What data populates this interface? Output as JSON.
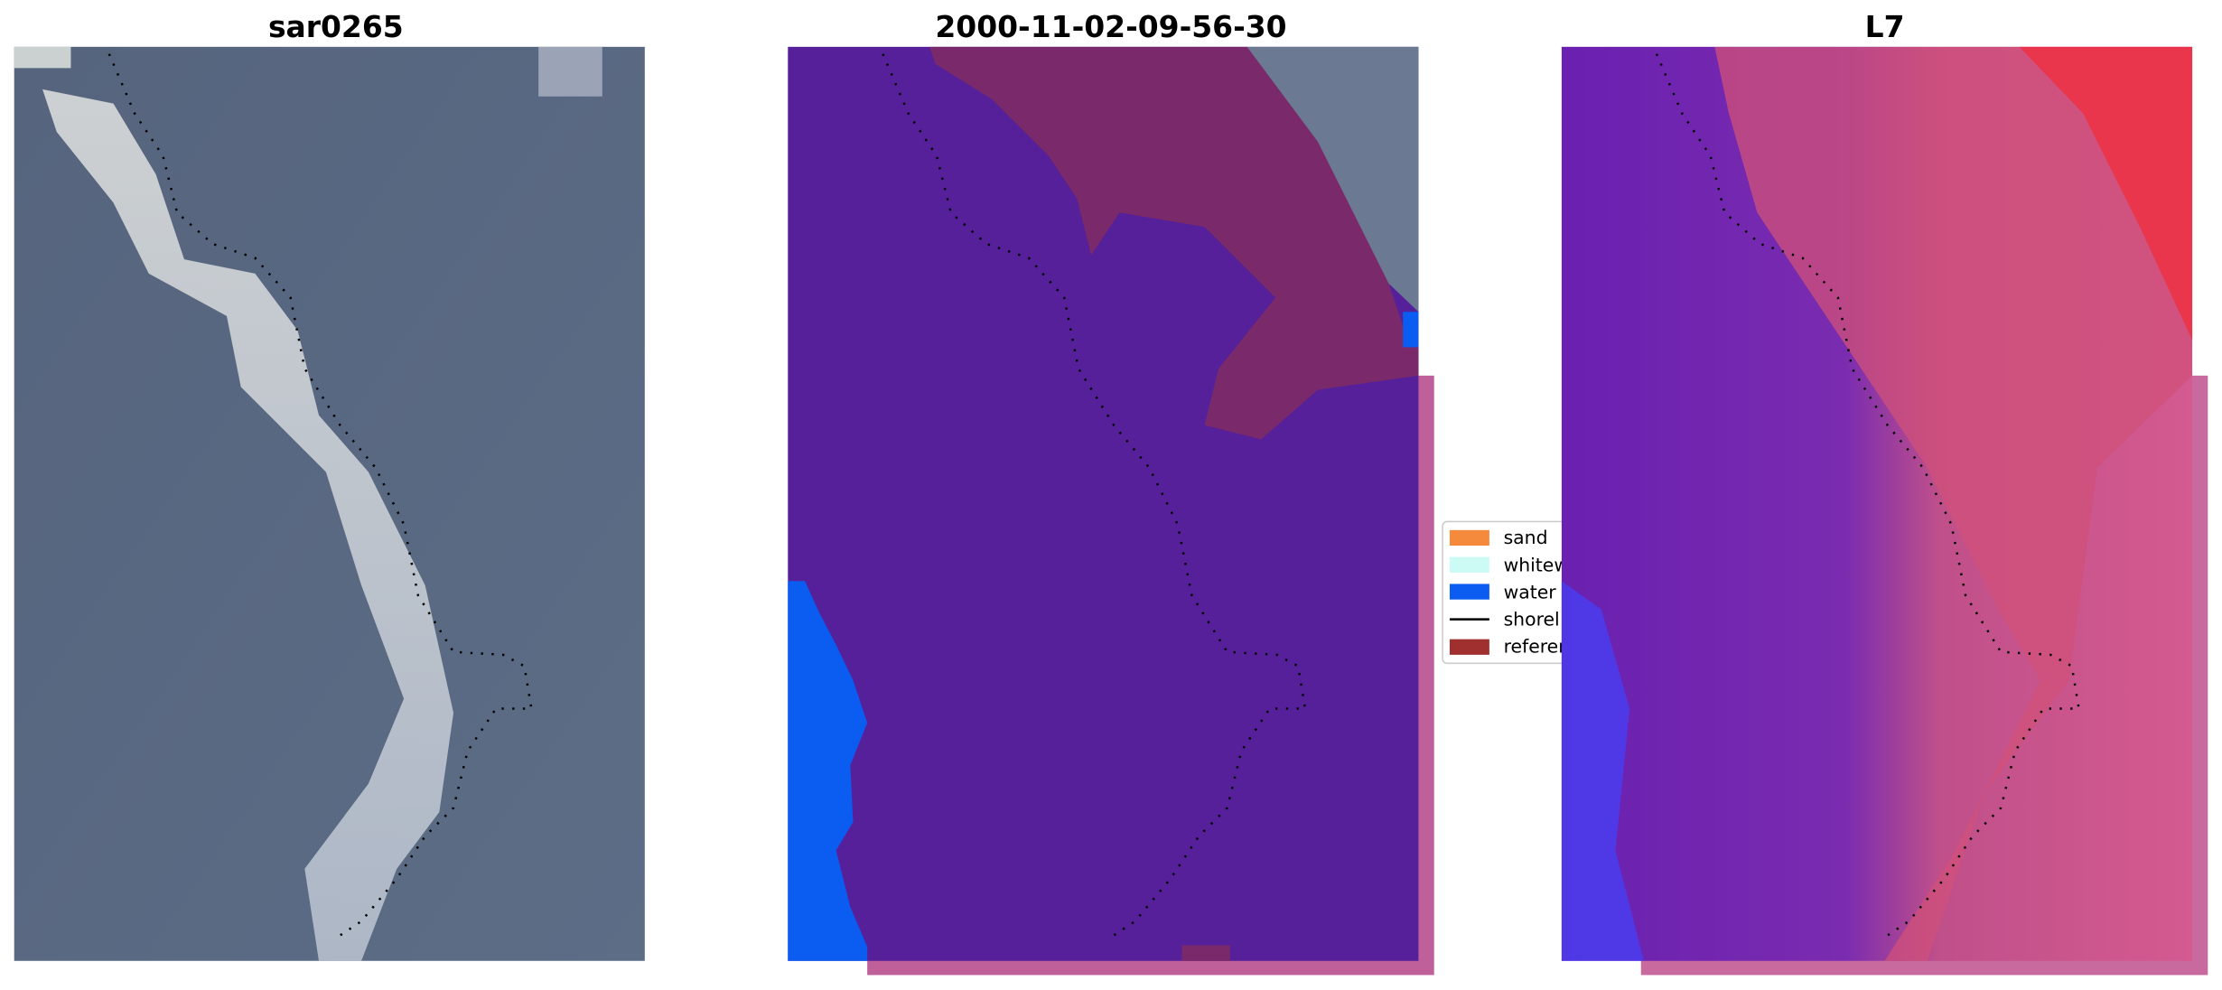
{
  "panels": [
    {
      "title": "sar0265"
    },
    {
      "title": "2000-11-02-09-56-30"
    },
    {
      "title": "L7"
    }
  ],
  "legend": {
    "items": [
      {
        "label": "sand"
      },
      {
        "label": "whitew"
      },
      {
        "label": "water"
      },
      {
        "label": "shorel"
      },
      {
        "label": "referen"
      }
    ]
  }
}
